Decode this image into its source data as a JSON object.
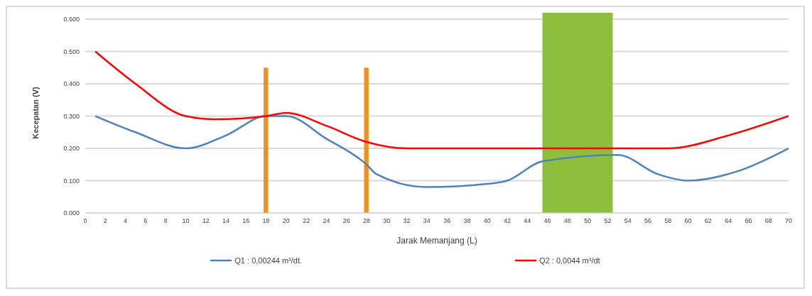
{
  "chart_data": {
    "type": "line",
    "xlabel": "Jarak Memanjang (L)",
    "ylabel": "Kecepatan (V)",
    "xlim": [
      0,
      70
    ],
    "xticks": [
      0,
      2,
      4,
      6,
      8,
      10,
      12,
      14,
      16,
      18,
      20,
      22,
      24,
      26,
      28,
      30,
      32,
      34,
      36,
      38,
      40,
      42,
      44,
      46,
      48,
      50,
      52,
      54,
      56,
      58,
      60,
      62,
      64,
      66,
      68,
      70
    ],
    "ylim": [
      0,
      0.62
    ],
    "yticks": [
      {
        "value": 0,
        "label": "0.000"
      },
      {
        "value": 0.1,
        "label": "0.100"
      },
      {
        "value": 0.2,
        "label": "0.200"
      },
      {
        "value": 0.3,
        "label": "0.300"
      },
      {
        "value": 0.4,
        "label": "0.400"
      },
      {
        "value": 0.5,
        "label": "0.500"
      },
      {
        "value": 0.6,
        "label": "0.600"
      }
    ],
    "grid": "y",
    "legend": "bottom",
    "marker": "none",
    "line_style": "solid",
    "series": [
      {
        "name": "Q1 : 0,00244 m³/dt.",
        "color": "#4f81bd",
        "x": [
          1,
          5,
          10,
          14,
          18,
          20,
          24,
          28,
          29,
          34,
          40,
          42,
          45.5,
          53,
          57,
          60,
          65,
          70
        ],
        "values": [
          0.3,
          0.25,
          0.2,
          0.24,
          0.3,
          0.3,
          0.23,
          0.15,
          0.12,
          0.08,
          0.09,
          0.1,
          0.16,
          0.18,
          0.12,
          0.1,
          0.13,
          0.2
        ]
      },
      {
        "name": "Q2 : 0,0044 m³/dt",
        "color": "#ff0000",
        "x": [
          1,
          5,
          10,
          13,
          18,
          20,
          24,
          28,
          32,
          40,
          45,
          53,
          58,
          64,
          70
        ],
        "values": [
          0.5,
          0.4,
          0.3,
          0.29,
          0.3,
          0.31,
          0.27,
          0.22,
          0.2,
          0.2,
          0.2,
          0.2,
          0.2,
          0.24,
          0.3
        ]
      },
      {
        "type": "bar",
        "color": "#f0901f",
        "x": [
          18,
          28
        ],
        "values": [
          0.45,
          0.45
        ]
      }
    ],
    "bands": [
      {
        "axis": "x",
        "from": 45.5,
        "to": 52.5,
        "color": "#8dbf3c"
      }
    ]
  }
}
